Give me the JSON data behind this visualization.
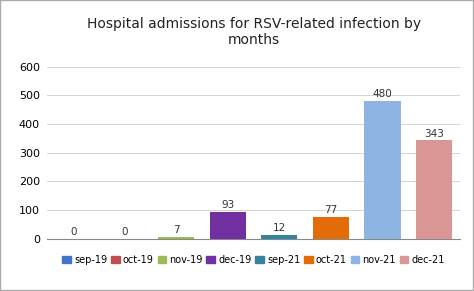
{
  "title": "Hospital admissions for RSV-related infection by\nmonths",
  "categories": [
    "sep-19",
    "oct-19",
    "nov-19",
    "dec-19",
    "sep-21",
    "oct-21",
    "nov-21",
    "dec-21"
  ],
  "values": [
    0,
    0,
    7,
    93,
    12,
    77,
    480,
    343
  ],
  "colors": [
    "#4472c4",
    "#c0504d",
    "#9bbb59",
    "#7030a0",
    "#31849b",
    "#e36c09",
    "#8db4e2",
    "#d99694"
  ],
  "ylim": [
    0,
    650
  ],
  "yticks": [
    0,
    100,
    200,
    300,
    400,
    500,
    600
  ],
  "background_color": "#ffffff",
  "title_fontsize": 10,
  "label_fontsize": 7.5,
  "tick_fontsize": 8,
  "legend_fontsize": 7
}
